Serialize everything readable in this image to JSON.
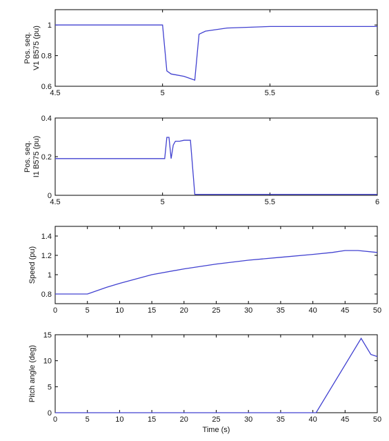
{
  "colors": {
    "line": "#4040d0",
    "axis": "#000000",
    "background": "#ffffff"
  },
  "chart_data": [
    {
      "type": "line",
      "ylabel_lines": [
        "Pos. seq.",
        "V1 B575 (pu)"
      ],
      "xlabel": "",
      "xlim": [
        4.5,
        6
      ],
      "ylim": [
        0.6,
        1.1
      ],
      "xticks": [
        4.5,
        5,
        5.5,
        6
      ],
      "xtick_labels": [
        "4.5",
        "5",
        "5.5",
        "6"
      ],
      "yticks": [
        0.6,
        0.8,
        1
      ],
      "ytick_labels": [
        "0.6",
        "0.8",
        "1"
      ],
      "series": [
        {
          "x": [
            4.5,
            5.0,
            5.02,
            5.04,
            5.06,
            5.1,
            5.13,
            5.15,
            5.17,
            5.2,
            5.3,
            5.5,
            6.0
          ],
          "y": [
            1.0,
            1.0,
            0.7,
            0.68,
            0.675,
            0.665,
            0.65,
            0.64,
            0.94,
            0.96,
            0.98,
            0.99,
            0.99
          ]
        }
      ]
    },
    {
      "type": "line",
      "ylabel_lines": [
        "Pos. seq.",
        "I1 B575 (pu)"
      ],
      "xlabel": "",
      "xlim": [
        4.5,
        6
      ],
      "ylim": [
        0,
        0.4
      ],
      "xticks": [
        4.5,
        5,
        5.5,
        6
      ],
      "xtick_labels": [
        "4.5",
        "5",
        "5.5",
        "6"
      ],
      "yticks": [
        0,
        0.2,
        0.4
      ],
      "ytick_labels": [
        "0",
        "0.2",
        "0.4"
      ],
      "series": [
        {
          "x": [
            4.5,
            5.0,
            5.01,
            5.02,
            5.03,
            5.04,
            5.05,
            5.06,
            5.08,
            5.1,
            5.13,
            5.15,
            5.16,
            6.0
          ],
          "y": [
            0.19,
            0.19,
            0.19,
            0.3,
            0.3,
            0.19,
            0.26,
            0.28,
            0.28,
            0.285,
            0.285,
            0.005,
            0.005,
            0.005
          ]
        }
      ]
    },
    {
      "type": "line",
      "ylabel_lines": [
        "Speed (pu)"
      ],
      "xlabel": "",
      "xlim": [
        0,
        50
      ],
      "ylim": [
        0.7,
        1.5
      ],
      "xticks": [
        0,
        5,
        10,
        15,
        20,
        25,
        30,
        35,
        40,
        45,
        50
      ],
      "xtick_labels": [
        "0",
        "5",
        "10",
        "15",
        "20",
        "25",
        "30",
        "35",
        "40",
        "45",
        "50"
      ],
      "yticks": [
        0.8,
        1,
        1.2,
        1.4
      ],
      "ytick_labels": [
        "0.8",
        "1",
        "1.2",
        "1.4"
      ],
      "series": [
        {
          "x": [
            0,
            5,
            8,
            10,
            15,
            20,
            25,
            30,
            35,
            40,
            43,
            45,
            47,
            50
          ],
          "y": [
            0.8,
            0.8,
            0.87,
            0.91,
            1.0,
            1.06,
            1.11,
            1.15,
            1.18,
            1.21,
            1.23,
            1.25,
            1.25,
            1.23
          ]
        }
      ]
    },
    {
      "type": "line",
      "ylabel_lines": [
        "Pitch angle (deg)"
      ],
      "xlabel": "Time (s)",
      "xlim": [
        0,
        50
      ],
      "ylim": [
        0,
        15
      ],
      "xticks": [
        0,
        5,
        10,
        15,
        20,
        25,
        30,
        35,
        40,
        45,
        50
      ],
      "xtick_labels": [
        "0",
        "5",
        "10",
        "15",
        "20",
        "25",
        "30",
        "35",
        "40",
        "45",
        "50"
      ],
      "yticks": [
        0,
        5,
        10,
        15
      ],
      "ytick_labels": [
        "0",
        "5",
        "10",
        "15"
      ],
      "series": [
        {
          "x": [
            0,
            40.5,
            47.5,
            49,
            50
          ],
          "y": [
            0,
            0,
            14.3,
            11.2,
            10.8
          ]
        }
      ]
    }
  ]
}
